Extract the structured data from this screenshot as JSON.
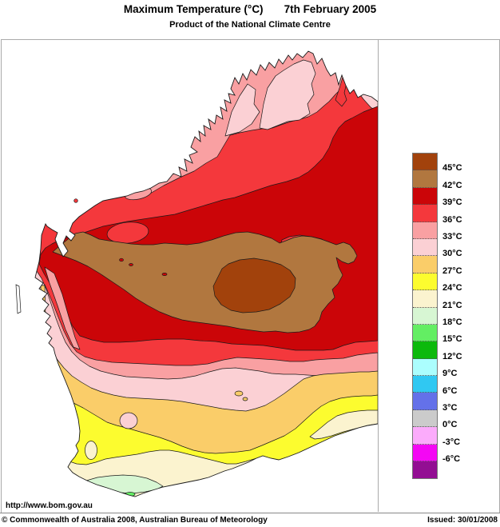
{
  "header": {
    "title": "Maximum Temperature (°C)",
    "date": "7th February 2005",
    "subtitle": "Product of the National Climate Centre"
  },
  "footer": {
    "url": "http://www.bom.gov.au",
    "copyright": "© Commonwealth of Australia 2008, Australian Bureau of Meteorology",
    "issued": "Issued: 30/01/2008"
  },
  "palette": {
    "t45": "#A2420C",
    "t42": "#B1773F",
    "t39": "#CB0508",
    "t36": "#F4383C",
    "t33": "#F9A0A2",
    "t30": "#FBD0D4",
    "t27": "#FACD69",
    "t24": "#FCFC2F",
    "t21": "#FBF3CF",
    "t18": "#D7F6D3",
    "t15": "#63EE63",
    "t12": "#0CB90C",
    "t9": "#ABFEFE",
    "t6": "#30C8F2",
    "t3": "#6471E9",
    "t0": "#CBCBCB",
    "tm3": "#FBABFB",
    "tm6": "#F407F4",
    "tm9": "#930E93",
    "frame": "#aaaaaa",
    "coastline": "#1a1a1a"
  },
  "legend": {
    "colors": [
      "t45",
      "t42",
      "t39",
      "t36",
      "t33",
      "t30",
      "t27",
      "t24",
      "t21",
      "t18",
      "t15",
      "t12",
      "t9",
      "t6",
      "t3",
      "t0",
      "tm3",
      "tm6",
      "tm9"
    ],
    "labels": [
      "45°C",
      "42°C",
      "39°C",
      "36°C",
      "33°C",
      "30°C",
      "27°C",
      "24°C",
      "21°C",
      "18°C",
      "15°C",
      "12°C",
      "9°C",
      "6°C",
      "3°C",
      "0°C",
      "-3°C",
      "-6°C"
    ]
  },
  "map_data": {
    "type": "filled_contour_map",
    "region": "Western Australia",
    "variable": "Maximum Temperature (°C)",
    "date": "7th February 2005",
    "scale_degC": {
      "min": -6,
      "max": 45,
      "step": 3
    },
    "features": [
      {
        "band": "45+ °C",
        "location": "central interior core"
      },
      {
        "band": "42-45 °C",
        "location": "broad elongated central belt"
      },
      {
        "band": "39-42 °C",
        "location": "large inland band reaching NT/SA border"
      },
      {
        "band": "36-39 °C",
        "location": "north and west coastal strips, islands inside 39-42 band"
      },
      {
        "band": "33-36 °C",
        "location": "Kimberley coastal band, Pilbara coast patch, band south of 39-42"
      },
      {
        "band": "30-33 °C",
        "location": "Kimberley peninsulas, Shark Bay coast, wide southern band"
      },
      {
        "band": "27-30 °C",
        "location": "south-west diagonal band and Shark Bay peninsulas"
      },
      {
        "band": "24-27 °C",
        "location": "lower south-west band to south coast"
      },
      {
        "band": "21-24 °C",
        "location": "far south-west coastal strip and Bight coast patch"
      },
      {
        "band": "18-21 °C",
        "location": "south-coast pocket near Albany"
      },
      {
        "band": "15-18 °C",
        "location": "small spot on south coast"
      }
    ]
  }
}
